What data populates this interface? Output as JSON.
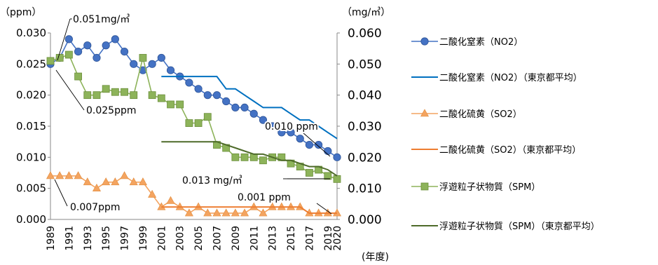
{
  "chart_data": {
    "type": "line",
    "y_left": {
      "label": "（ppm）",
      "min": 0,
      "max": 0.03,
      "ticks": [
        "0.000",
        "0.005",
        "0.010",
        "0.015",
        "0.020",
        "0.025",
        "0.030"
      ]
    },
    "y_right": {
      "label": "（mg/㎥）",
      "min": 0,
      "max": 0.06,
      "ticks": [
        "0.000",
        "0.010",
        "0.020",
        "0.030",
        "0.040",
        "0.050",
        "0.060"
      ]
    },
    "x_label": "(年度)",
    "x_ticks": [
      "1989",
      "1991",
      "1993",
      "1995",
      "1997",
      "1999",
      "2001",
      "2003",
      "2005",
      "2007",
      "2009",
      "2011",
      "2013",
      "2015",
      "2017",
      "2019",
      "2020"
    ],
    "series": [
      {
        "name": "二酸化窒素（NO2）",
        "axis": "left",
        "color": "#4472C4",
        "marker": "circle",
        "x": [
          1989,
          1990,
          1991,
          1992,
          1993,
          1994,
          1995,
          1996,
          1997,
          1998,
          1999,
          2000,
          2001,
          2002,
          2003,
          2004,
          2005,
          2006,
          2007,
          2008,
          2009,
          2010,
          2011,
          2012,
          2013,
          2014,
          2015,
          2016,
          2017,
          2018,
          2019,
          2020
        ],
        "values": [
          0.025,
          0.026,
          0.029,
          0.027,
          0.028,
          0.026,
          0.028,
          0.029,
          0.027,
          0.025,
          0.024,
          0.025,
          0.026,
          0.024,
          0.023,
          0.022,
          0.021,
          0.02,
          0.02,
          0.019,
          0.018,
          0.018,
          0.017,
          0.016,
          0.015,
          0.014,
          0.014,
          0.013,
          0.012,
          0.012,
          0.011,
          0.01
        ]
      },
      {
        "name": "二酸化窒素（NO2）（東京都平均）",
        "axis": "left",
        "color": "#0070C0",
        "marker": "none",
        "x": [
          2001,
          2002,
          2003,
          2004,
          2005,
          2006,
          2007,
          2008,
          2009,
          2010,
          2011,
          2012,
          2013,
          2014,
          2015,
          2016,
          2017,
          2018,
          2019,
          2020
        ],
        "values": [
          0.023,
          0.023,
          0.023,
          0.023,
          0.023,
          0.023,
          0.023,
          0.021,
          0.021,
          0.02,
          0.019,
          0.018,
          0.018,
          0.018,
          0.017,
          0.016,
          0.016,
          0.015,
          0.014,
          0.013
        ]
      },
      {
        "name": "二酸化硫黄（SO2）",
        "axis": "left",
        "color": "#F4A460",
        "marker": "triangle",
        "x": [
          1989,
          1990,
          1991,
          1992,
          1993,
          1994,
          1995,
          1996,
          1997,
          1998,
          1999,
          2000,
          2001,
          2002,
          2003,
          2004,
          2005,
          2006,
          2007,
          2008,
          2009,
          2010,
          2011,
          2012,
          2013,
          2014,
          2015,
          2016,
          2017,
          2018,
          2019,
          2020
        ],
        "values": [
          0.007,
          0.007,
          0.007,
          0.007,
          0.006,
          0.005,
          0.006,
          0.006,
          0.007,
          0.006,
          0.006,
          0.004,
          0.002,
          0.003,
          0.002,
          0.001,
          0.002,
          0.001,
          0.001,
          0.001,
          0.001,
          0.001,
          0.002,
          0.001,
          0.002,
          0.002,
          0.002,
          0.002,
          0.001,
          0.001,
          0.001,
          0.001
        ]
      },
      {
        "name": "二酸化硫黄（SO2）（東京都平均）",
        "axis": "left",
        "color": "#ED7D31",
        "marker": "none",
        "x": [
          2001,
          2002,
          2003,
          2004,
          2005,
          2006,
          2007,
          2008,
          2009,
          2010,
          2011,
          2012,
          2013,
          2014,
          2015,
          2016,
          2017,
          2018,
          2019,
          2020
        ],
        "values": [
          0.002,
          0.002,
          0.002,
          0.002,
          0.002,
          0.002,
          0.002,
          0.002,
          0.002,
          0.002,
          0.002,
          0.002,
          0.002,
          0.002,
          0.002,
          0.002,
          0.001,
          0.001,
          0.001,
          0.001
        ]
      },
      {
        "name": "浮遊粒子状物質（SPM）",
        "axis": "right",
        "color": "#8DB35A",
        "marker": "square",
        "x": [
          1989,
          1990,
          1991,
          1992,
          1993,
          1994,
          1995,
          1996,
          1997,
          1998,
          1999,
          2000,
          2001,
          2002,
          2003,
          2004,
          2005,
          2006,
          2007,
          2008,
          2009,
          2010,
          2011,
          2012,
          2013,
          2014,
          2015,
          2016,
          2017,
          2018,
          2019,
          2020
        ],
        "values": [
          0.051,
          0.052,
          0.053,
          0.046,
          0.04,
          0.04,
          0.042,
          0.041,
          0.041,
          0.04,
          0.052,
          0.04,
          0.039,
          0.037,
          0.037,
          0.031,
          0.031,
          0.033,
          0.024,
          0.023,
          0.02,
          0.02,
          0.02,
          0.019,
          0.02,
          0.02,
          0.018,
          0.017,
          0.015,
          0.016,
          0.014,
          0.013
        ]
      },
      {
        "name": "浮遊粒子状物質（SPM）（東京都平均）",
        "axis": "right",
        "color": "#4E6B2A",
        "marker": "none",
        "x": [
          2001,
          2002,
          2003,
          2004,
          2005,
          2006,
          2007,
          2008,
          2009,
          2010,
          2011,
          2012,
          2013,
          2014,
          2015,
          2016,
          2017,
          2018,
          2019,
          2020
        ],
        "values": [
          0.025,
          0.025,
          0.025,
          0.025,
          0.025,
          0.025,
          0.025,
          0.024,
          0.023,
          0.022,
          0.021,
          0.021,
          0.02,
          0.019,
          0.019,
          0.018,
          0.017,
          0.017,
          0.016,
          0.014
        ]
      }
    ],
    "annotations": [
      {
        "text": "0.051mg/㎥",
        "x": 1989,
        "y": 0.051,
        "axis": "right"
      },
      {
        "text": "0.025ppm",
        "x": 1989,
        "y": 0.025,
        "axis": "left"
      },
      {
        "text": "0.007ppm",
        "x": 1989,
        "y": 0.007,
        "axis": "left"
      },
      {
        "text": "0.010 ppm",
        "x": 2020,
        "y": 0.01,
        "axis": "left"
      },
      {
        "text": "0.013 mg/㎥",
        "x": 2020,
        "y": 0.013,
        "axis": "right"
      },
      {
        "text": "0.001 ppm",
        "x": 2020,
        "y": 0.001,
        "axis": "left"
      }
    ],
    "legend_position": "right"
  }
}
